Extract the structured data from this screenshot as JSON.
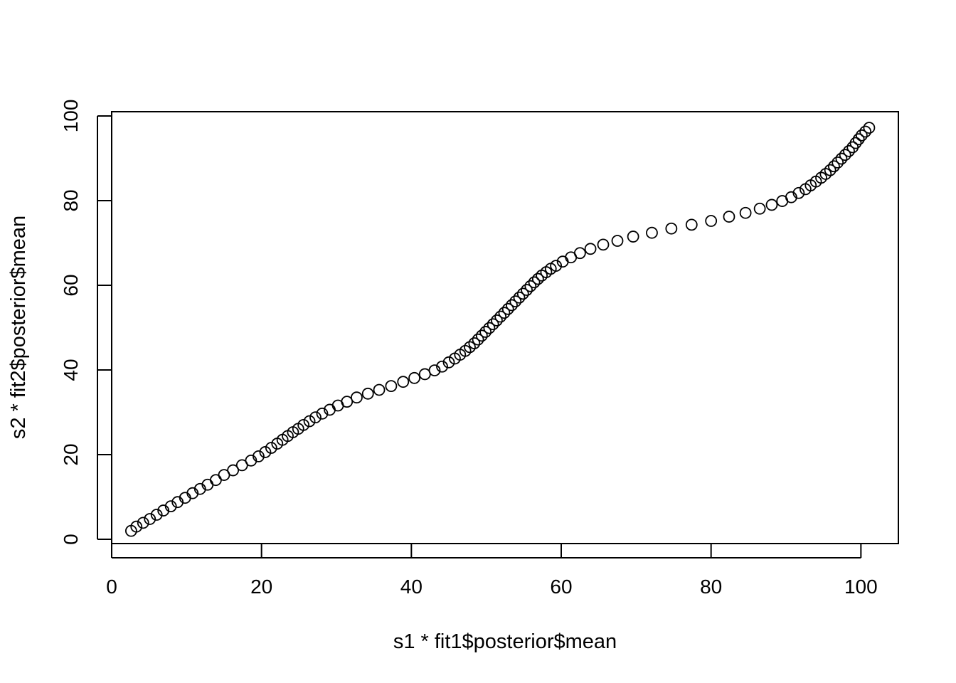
{
  "chart_data": {
    "type": "scatter",
    "title": "",
    "xlabel": "s1 * fit1$posterior$mean",
    "ylabel": "s2 * fit2$posterior$mean",
    "xlim": [
      0,
      105
    ],
    "ylim": [
      -1,
      101
    ],
    "x_ticks": [
      0,
      20,
      40,
      60,
      80,
      100
    ],
    "y_ticks": [
      0,
      20,
      40,
      60,
      80,
      100
    ],
    "x_tick_labels": [
      "0",
      "20",
      "40",
      "60",
      "80",
      "100"
    ],
    "y_tick_labels": [
      "0",
      "20",
      "40",
      "60",
      "80",
      "100"
    ],
    "grid": false,
    "legend": "none",
    "marker": "open-circle",
    "marker_color": "#000000",
    "points": [
      [
        2.6,
        2.0
      ],
      [
        3.3,
        3.0
      ],
      [
        4.2,
        3.9
      ],
      [
        5.1,
        4.8
      ],
      [
        6.0,
        5.8
      ],
      [
        6.9,
        6.8
      ],
      [
        7.9,
        7.8
      ],
      [
        8.8,
        8.8
      ],
      [
        9.8,
        9.8
      ],
      [
        10.8,
        10.9
      ],
      [
        11.8,
        11.9
      ],
      [
        12.8,
        12.9
      ],
      [
        13.9,
        14.0
      ],
      [
        15.0,
        15.2
      ],
      [
        16.2,
        16.3
      ],
      [
        17.4,
        17.5
      ],
      [
        18.6,
        18.6
      ],
      [
        19.6,
        19.6
      ],
      [
        20.5,
        20.6
      ],
      [
        21.3,
        21.6
      ],
      [
        22.1,
        22.6
      ],
      [
        22.8,
        23.5
      ],
      [
        23.5,
        24.4
      ],
      [
        24.2,
        25.3
      ],
      [
        24.9,
        26.1
      ],
      [
        25.6,
        27.0
      ],
      [
        26.4,
        27.9
      ],
      [
        27.2,
        28.8
      ],
      [
        28.1,
        29.7
      ],
      [
        29.1,
        30.6
      ],
      [
        30.2,
        31.6
      ],
      [
        31.4,
        32.5
      ],
      [
        32.7,
        33.5
      ],
      [
        34.2,
        34.4
      ],
      [
        35.7,
        35.3
      ],
      [
        37.3,
        36.2
      ],
      [
        38.9,
        37.2
      ],
      [
        40.4,
        38.1
      ],
      [
        41.8,
        39.0
      ],
      [
        43.1,
        39.9
      ],
      [
        44.1,
        40.8
      ],
      [
        45.0,
        41.8
      ],
      [
        45.8,
        42.7
      ],
      [
        46.5,
        43.6
      ],
      [
        47.2,
        44.5
      ],
      [
        47.8,
        45.4
      ],
      [
        48.4,
        46.3
      ],
      [
        48.9,
        47.2
      ],
      [
        49.4,
        48.1
      ],
      [
        49.9,
        49.0
      ],
      [
        50.4,
        49.9
      ],
      [
        50.9,
        50.8
      ],
      [
        51.4,
        51.7
      ],
      [
        51.9,
        52.6
      ],
      [
        52.4,
        53.5
      ],
      [
        52.9,
        54.4
      ],
      [
        53.4,
        55.3
      ],
      [
        53.9,
        56.2
      ],
      [
        54.4,
        57.1
      ],
      [
        54.9,
        58.0
      ],
      [
        55.4,
        58.9
      ],
      [
        55.9,
        59.8
      ],
      [
        56.4,
        60.7
      ],
      [
        56.9,
        61.5
      ],
      [
        57.4,
        62.3
      ],
      [
        58.0,
        63.1
      ],
      [
        58.6,
        63.9
      ],
      [
        59.3,
        64.6
      ],
      [
        60.2,
        65.6
      ],
      [
        61.3,
        66.6
      ],
      [
        62.5,
        67.6
      ],
      [
        63.9,
        68.6
      ],
      [
        65.6,
        69.6
      ],
      [
        67.5,
        70.5
      ],
      [
        69.6,
        71.5
      ],
      [
        72.1,
        72.4
      ],
      [
        74.7,
        73.4
      ],
      [
        77.4,
        74.3
      ],
      [
        80.0,
        75.2
      ],
      [
        82.4,
        76.2
      ],
      [
        84.6,
        77.1
      ],
      [
        86.5,
        78.1
      ],
      [
        88.1,
        79.0
      ],
      [
        89.5,
        79.9
      ],
      [
        90.7,
        80.8
      ],
      [
        91.7,
        81.8
      ],
      [
        92.6,
        82.7
      ],
      [
        93.3,
        83.6
      ],
      [
        94.0,
        84.5
      ],
      [
        94.7,
        85.4
      ],
      [
        95.3,
        86.3
      ],
      [
        95.9,
        87.2
      ],
      [
        96.4,
        88.1
      ],
      [
        96.9,
        89.0
      ],
      [
        97.4,
        89.9
      ],
      [
        97.9,
        90.8
      ],
      [
        98.4,
        91.7
      ],
      [
        98.9,
        92.6
      ],
      [
        99.3,
        93.6
      ],
      [
        99.7,
        94.5
      ],
      [
        100.1,
        95.4
      ],
      [
        100.6,
        96.3
      ],
      [
        101.1,
        97.2
      ]
    ]
  }
}
